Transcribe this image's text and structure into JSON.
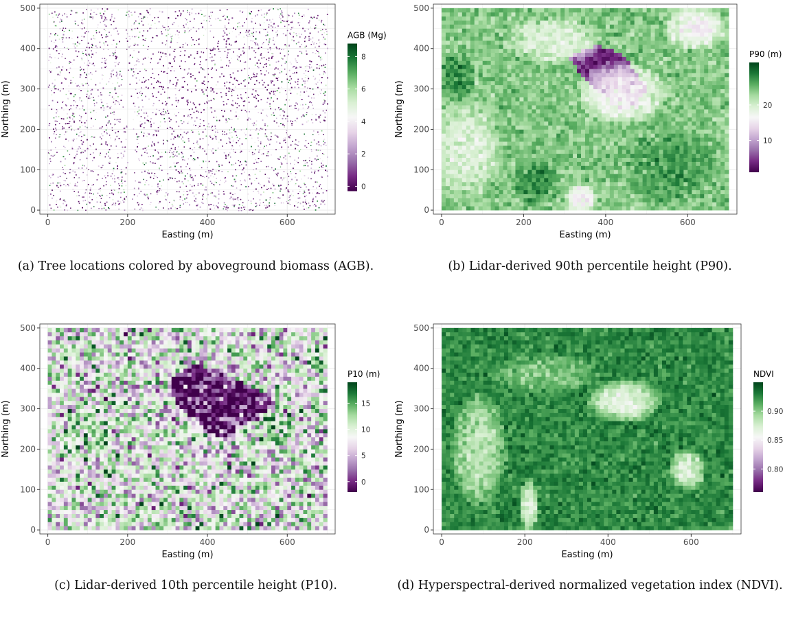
{
  "chart_data": [
    {
      "type": "scatter",
      "id": "a",
      "xlabel": "Easting (m)",
      "ylabel": "Northing (m)",
      "xlim": [
        -20,
        720
      ],
      "ylim": [
        -10,
        510
      ],
      "xticks": [
        0,
        200,
        400,
        600
      ],
      "yticks": [
        0,
        100,
        200,
        300,
        400,
        500
      ],
      "legend": {
        "title": "AGB (Mg)",
        "ticks": [
          0,
          2,
          4,
          6,
          8
        ],
        "range": [
          -0.3,
          8.8
        ],
        "placement": "right"
      },
      "colorscale": [
        "#40004b",
        "#762a83",
        "#9970ab",
        "#c2a5cf",
        "#e7d4e8",
        "#f7f7f7",
        "#d9f0d3",
        "#a6dba0",
        "#5aae61",
        "#1b7837",
        "#00441b"
      ],
      "grid": true,
      "caption": "(a) Tree locations colored by aboveground biomass (AGB).",
      "features": {
        "gaps": [
          {
            "x": 410,
            "y": 330,
            "rx": 170,
            "ry": 100,
            "value": 0.2
          }
        ],
        "corridors": [
          {
            "points": [
              [
                185,
                500
              ],
              [
                190,
                380
              ],
              [
                200,
                260
              ],
              [
                210,
                120
              ],
              [
                200,
                0
              ]
            ],
            "width": 14
          },
          {
            "points": [
              [
                300,
                260
              ],
              [
                340,
                240
              ]
            ],
            "width": 6
          },
          {
            "points": [
              [
                470,
                220
              ],
              [
                500,
                150
              ],
              [
                470,
                130
              ],
              [
                430,
                120
              ]
            ],
            "width": 8
          },
          {
            "points": [
              [
                560,
                120
              ],
              [
                620,
                190
              ],
              [
                690,
                210
              ]
            ],
            "width": 10
          },
          {
            "points": [
              [
                480,
                430
              ],
              [
                460,
                360
              ],
              [
                480,
                320
              ]
            ],
            "width": 6
          }
        ]
      }
    },
    {
      "type": "heatmap",
      "id": "b",
      "xlabel": "Easting (m)",
      "ylabel": "Northing (m)",
      "xlim": [
        -20,
        720
      ],
      "ylim": [
        -10,
        510
      ],
      "xticks": [
        0,
        200,
        400,
        600
      ],
      "yticks": [
        0,
        100,
        200,
        300,
        400,
        500
      ],
      "cell": 10,
      "extent": [
        0,
        700,
        0,
        500
      ],
      "legend": {
        "title": "P90 (m)",
        "ticks": [
          10,
          20
        ],
        "range": [
          1,
          32
        ],
        "placement": "right"
      },
      "colorscale": [
        "#40004b",
        "#762a83",
        "#9970ab",
        "#c2a5cf",
        "#e7d4e8",
        "#f7f7f7",
        "#d9f0d3",
        "#a6dba0",
        "#5aae61",
        "#1b7837",
        "#00441b"
      ],
      "grid": true,
      "caption": "(b) Lidar-derived 90th percentile height (P90).",
      "features": {
        "base": 24,
        "noise": 2.5,
        "regions": [
          {
            "kind": "poly",
            "points": [
              [
                310,
                380
              ],
              [
                380,
                410
              ],
              [
                440,
                390
              ],
              [
                500,
                300
              ],
              [
                470,
                260
              ],
              [
                430,
                270
              ],
              [
                360,
                310
              ]
            ],
            "value": 4,
            "soft": 25
          },
          {
            "kind": "ellipse",
            "x": 440,
            "y": 290,
            "rx": 110,
            "ry": 80,
            "value": 16
          },
          {
            "kind": "ellipse",
            "x": 620,
            "y": 450,
            "rx": 80,
            "ry": 55,
            "value": 16
          },
          {
            "kind": "ellipse",
            "x": 340,
            "y": 30,
            "rx": 40,
            "ry": 40,
            "value": 15
          },
          {
            "kind": "ellipse",
            "x": 60,
            "y": 150,
            "rx": 90,
            "ry": 130,
            "value": 19
          },
          {
            "kind": "ellipse",
            "x": 270,
            "y": 420,
            "rx": 120,
            "ry": 60,
            "value": 19
          },
          {
            "kind": "ellipse",
            "x": 40,
            "y": 330,
            "rx": 45,
            "ry": 70,
            "value": 28
          },
          {
            "kind": "ellipse",
            "x": 230,
            "y": 70,
            "rx": 60,
            "ry": 60,
            "value": 28
          },
          {
            "kind": "ellipse",
            "x": 560,
            "y": 110,
            "rx": 120,
            "ry": 100,
            "value": 27
          }
        ]
      }
    },
    {
      "type": "heatmap",
      "id": "c",
      "xlabel": "Easting (m)",
      "ylabel": "Northing (m)",
      "xlim": [
        -20,
        720
      ],
      "ylim": [
        -10,
        510
      ],
      "xticks": [
        0,
        200,
        400,
        600
      ],
      "yticks": [
        0,
        100,
        200,
        300,
        400,
        500
      ],
      "cell": 10,
      "extent": [
        0,
        700,
        0,
        500
      ],
      "legend": {
        "title": "P10 (m)",
        "ticks": [
          0,
          5,
          10,
          15
        ],
        "range": [
          -2,
          19
        ],
        "placement": "right"
      },
      "colorscale": [
        "#40004b",
        "#762a83",
        "#9970ab",
        "#c2a5cf",
        "#e7d4e8",
        "#f7f7f7",
        "#d9f0d3",
        "#a6dba0",
        "#5aae61",
        "#1b7837",
        "#00441b"
      ],
      "grid": true,
      "caption": "(c) Lidar-derived 10th percentile height (P10).",
      "features": {
        "base": 9,
        "noise": 7,
        "regions": [
          {
            "kind": "poly",
            "points": [
              [
                310,
                380
              ],
              [
                370,
                410
              ],
              [
                420,
                400
              ],
              [
                480,
                370
              ],
              [
                560,
                330
              ],
              [
                550,
                280
              ],
              [
                480,
                260
              ],
              [
                450,
                220
              ],
              [
                410,
                240
              ],
              [
                330,
                300
              ],
              [
                310,
                350
              ]
            ],
            "value": -1,
            "soft": 0
          },
          {
            "kind": "ellipse",
            "x": 90,
            "y": 240,
            "rx": 70,
            "ry": 70,
            "value": 13
          },
          {
            "kind": "ellipse",
            "x": 570,
            "y": 250,
            "rx": 60,
            "ry": 50,
            "value": 13
          },
          {
            "kind": "ellipse",
            "x": 680,
            "y": 440,
            "rx": 40,
            "ry": 50,
            "value": 11
          }
        ]
      }
    },
    {
      "type": "heatmap",
      "id": "d",
      "xlabel": "Easting (m)",
      "ylabel": "Northing (m)",
      "xlim": [
        -20,
        720
      ],
      "ylim": [
        -10,
        510
      ],
      "xticks": [
        0,
        200,
        400,
        600
      ],
      "yticks": [
        0,
        100,
        200,
        300,
        400,
        500
      ],
      "cell": 10,
      "extent": [
        0,
        700,
        0,
        500
      ],
      "legend": {
        "title": "NDVI",
        "ticks": [
          0.8,
          0.85,
          0.9
        ],
        "tick_labels": [
          "0.80",
          "0.85",
          "0.90"
        ],
        "range": [
          0.76,
          0.95
        ],
        "placement": "right"
      },
      "colorscale": [
        "#40004b",
        "#762a83",
        "#9970ab",
        "#c2a5cf",
        "#e7d4e8",
        "#f7f7f7",
        "#d9f0d3",
        "#a6dba0",
        "#5aae61",
        "#1b7837",
        "#00441b"
      ],
      "grid": true,
      "caption": "(d) Hyperspectral-derived normalized vegetation index (NDVI).",
      "features": {
        "base": 0.925,
        "noise": 0.014,
        "regions": [
          {
            "kind": "ellipse",
            "x": 440,
            "y": 320,
            "rx": 90,
            "ry": 55,
            "value": 0.865
          },
          {
            "kind": "ellipse",
            "x": 590,
            "y": 150,
            "rx": 45,
            "ry": 55,
            "value": 0.87
          },
          {
            "kind": "ellipse",
            "x": 90,
            "y": 200,
            "rx": 70,
            "ry": 150,
            "value": 0.885
          },
          {
            "kind": "ellipse",
            "x": 210,
            "y": 60,
            "rx": 25,
            "ry": 70,
            "value": 0.87
          },
          {
            "kind": "ellipse",
            "x": 250,
            "y": 390,
            "rx": 140,
            "ry": 50,
            "value": 0.9
          }
        ]
      }
    }
  ]
}
